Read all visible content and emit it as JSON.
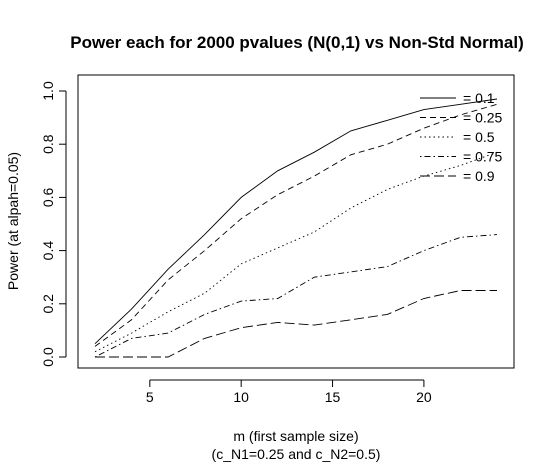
{
  "chart_data": {
    "type": "line",
    "title": "Power each for 2000 pvalues (N(0,1) vs Non-Std Normal)",
    "xlabel": "m (first sample size)",
    "xlabel_sub": "(c_N1=0.25 and c_N2=0.5)",
    "ylabel": "Power (at alpah=0.05)",
    "xlim": [
      2,
      24
    ],
    "ylim": [
      0,
      1
    ],
    "x_ticks": [
      "5",
      "10",
      "15",
      "20"
    ],
    "y_ticks": [
      "0.0",
      "0.2",
      "0.4",
      "0.6",
      "0.8",
      "1.0"
    ],
    "grid": false,
    "legend_position": "top-right",
    "x": [
      2,
      4,
      6,
      8,
      10,
      12,
      14,
      16,
      18,
      20,
      22,
      24
    ],
    "series": [
      {
        "name": "0.1",
        "line_style": "solid",
        "color": "#333333",
        "values": [
          0.05,
          0.18,
          0.33,
          0.46,
          0.6,
          0.7,
          0.77,
          0.85,
          0.89,
          0.93,
          0.95,
          0.97
        ]
      },
      {
        "name": "0.25",
        "line_style": "dashed",
        "color": "#333333",
        "values": [
          0.04,
          0.14,
          0.29,
          0.4,
          0.52,
          0.61,
          0.68,
          0.76,
          0.8,
          0.86,
          0.91,
          0.95
        ]
      },
      {
        "name": "0.5",
        "line_style": "dotted",
        "color": "#555555",
        "values": [
          0.02,
          0.09,
          0.17,
          0.24,
          0.35,
          0.41,
          0.47,
          0.56,
          0.63,
          0.68,
          0.72,
          0.77
        ]
      },
      {
        "name": "0.75",
        "line_style": "dotdash",
        "color": "#444444",
        "values": [
          0.0,
          0.07,
          0.09,
          0.16,
          0.21,
          0.22,
          0.3,
          0.32,
          0.34,
          0.4,
          0.45,
          0.46
        ]
      },
      {
        "name": "0.9",
        "line_style": "longdash",
        "color": "#444444",
        "values": [
          0.0,
          0.0,
          0.0,
          0.07,
          0.11,
          0.13,
          0.12,
          0.14,
          0.16,
          0.22,
          0.25,
          0.25
        ]
      }
    ]
  }
}
